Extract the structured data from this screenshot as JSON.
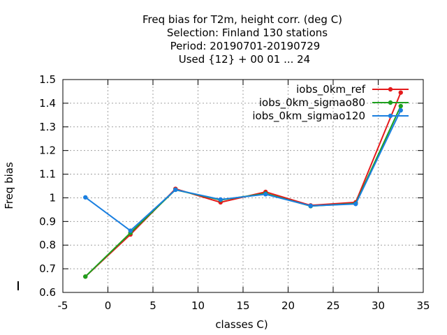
{
  "chart_data": {
    "type": "line",
    "title_lines": [
      "Freq bias  for T2m, height corr. (deg C)",
      "Selection: Finland    130 stations",
      "Period: 20190701-20190729",
      "Used {12} + 00 01 ... 24"
    ],
    "xlabel": "classes C)",
    "ylabel": "Freq bias",
    "xlim": [
      -5,
      35
    ],
    "ylim": [
      0.6,
      1.5
    ],
    "xticks": [
      -5,
      0,
      5,
      10,
      15,
      20,
      25,
      30,
      35
    ],
    "xtick_labels": [
      "-5",
      "0",
      "5",
      "10",
      "15",
      "20",
      "25",
      "30",
      "35"
    ],
    "yticks": [
      0.6,
      0.7,
      0.8,
      0.9,
      1.0,
      1.1,
      1.2,
      1.3,
      1.4,
      1.5
    ],
    "ytick_labels": [
      "0.6",
      "0.7",
      "0.8",
      "0.9",
      "1",
      "1.1",
      "1.2",
      "1.3",
      "1.4",
      "1.5"
    ],
    "grid": true,
    "legend_position": "top-right",
    "x": [
      -2.5,
      2.5,
      7.5,
      12.5,
      17.5,
      22.5,
      27.5,
      32.5
    ],
    "series": [
      {
        "name": "iobs_0km_ref",
        "color": "#e41a1c",
        "values": [
          0.667,
          0.845,
          1.038,
          0.981,
          1.025,
          0.968,
          0.981,
          1.445
        ]
      },
      {
        "name": "iobs_0km_sigmao80",
        "color": "#1ea01e",
        "values": [
          0.667,
          0.852,
          1.034,
          0.991,
          1.018,
          0.965,
          0.976,
          1.388
        ]
      },
      {
        "name": "iobs_0km_sigmao120",
        "color": "#1a7fe0",
        "values": [
          1.002,
          0.861,
          1.034,
          0.993,
          1.015,
          0.966,
          0.974,
          1.37
        ]
      }
    ]
  }
}
